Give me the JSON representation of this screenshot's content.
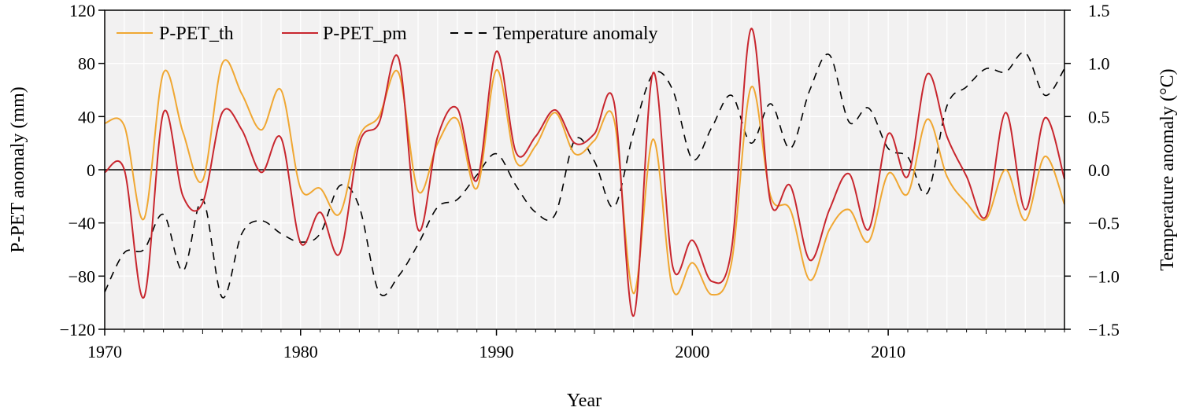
{
  "chart_data": {
    "type": "line",
    "title": "",
    "xlabel": "Year",
    "ylabel": "P-PET anomaly (mm)",
    "y2label": "Temperature anomaly (°C)",
    "xlim": [
      1970,
      2019
    ],
    "ylim": [
      -120,
      120
    ],
    "y2lim": [
      -1.5,
      1.5
    ],
    "xticks": [
      1970,
      1980,
      1990,
      2000,
      2010
    ],
    "yticks": [
      -120,
      -80,
      -40,
      0,
      40,
      80,
      120
    ],
    "y2ticks": [
      -1.5,
      -1.0,
      -0.5,
      0.0,
      0.5,
      1.0,
      1.5
    ],
    "ytick_labels": [
      "−120",
      "−80",
      "−40",
      "0",
      "40",
      "80",
      "120"
    ],
    "y2tick_labels": [
      "−1.5",
      "−1.0",
      "−0.5",
      "0.0",
      "0.5",
      "1.0",
      "1.5"
    ],
    "grid": true,
    "legend_position": "top-left",
    "series": [
      {
        "name": "P-PET_th",
        "color": "#f0a732",
        "axis": "left",
        "style": "solid",
        "x": [
          1970,
          1971,
          1972,
          1973,
          1974,
          1975,
          1976,
          1977,
          1978,
          1979,
          1980,
          1981,
          1982,
          1983,
          1984,
          1985,
          1986,
          1987,
          1988,
          1989,
          1990,
          1991,
          1992,
          1993,
          1994,
          1995,
          1996,
          1997,
          1998,
          1999,
          2000,
          2001,
          2002,
          2003,
          2004,
          2005,
          2006,
          2007,
          2008,
          2009,
          2010,
          2011,
          2012,
          2013,
          2014,
          2015,
          2016,
          2017,
          2018,
          2019
        ],
        "values": [
          35,
          33,
          -37,
          73,
          28,
          -8,
          80,
          57,
          30,
          60,
          -14,
          -14,
          -33,
          25,
          40,
          73,
          -16,
          20,
          38,
          -14,
          75,
          6,
          18,
          43,
          12,
          22,
          38,
          -93,
          23,
          -90,
          -70,
          -94,
          -70,
          62,
          -20,
          -30,
          -83,
          -45,
          -30,
          -54,
          -3,
          -18,
          38,
          -5,
          -25,
          -37,
          0,
          -38,
          10,
          -26
        ]
      },
      {
        "name": "P-PET_pm",
        "color": "#c8262e",
        "axis": "left",
        "style": "solid",
        "x": [
          1970,
          1971,
          1972,
          1973,
          1974,
          1975,
          1976,
          1977,
          1978,
          1979,
          1980,
          1981,
          1982,
          1983,
          1984,
          1985,
          1986,
          1987,
          1988,
          1989,
          1990,
          1991,
          1992,
          1993,
          1994,
          1995,
          1996,
          1997,
          1998,
          1999,
          2000,
          2001,
          2002,
          2003,
          2004,
          2005,
          2006,
          2007,
          2008,
          2009,
          2010,
          2011,
          2012,
          2013,
          2014,
          2015,
          2016,
          2017,
          2018,
          2019
        ],
        "values": [
          -2,
          0,
          -96,
          43,
          -20,
          -25,
          43,
          30,
          -2,
          24,
          -55,
          -32,
          -63,
          20,
          35,
          84,
          -45,
          25,
          46,
          -8,
          89,
          13,
          25,
          45,
          20,
          27,
          51,
          -110,
          73,
          -73,
          -53,
          -84,
          -60,
          106,
          -25,
          -12,
          -68,
          -30,
          -3,
          -45,
          27,
          -5,
          72,
          25,
          -5,
          -35,
          43,
          -30,
          39,
          -7
        ]
      },
      {
        "name": "Temperature anomaly",
        "color": "#000000",
        "axis": "right",
        "style": "dashed",
        "x": [
          1970,
          1971,
          1972,
          1973,
          1974,
          1975,
          1976,
          1977,
          1978,
          1979,
          1980,
          1981,
          1982,
          1983,
          1984,
          1985,
          1986,
          1987,
          1988,
          1989,
          1990,
          1991,
          1992,
          1993,
          1994,
          1995,
          1996,
          1997,
          1998,
          1999,
          2000,
          2001,
          2002,
          2003,
          2004,
          2005,
          2006,
          2007,
          2008,
          2009,
          2010,
          2011,
          2012,
          2013,
          2014,
          2015,
          2016,
          2017,
          2018,
          2019
        ],
        "values": [
          -1.15,
          -0.78,
          -0.75,
          -0.42,
          -0.95,
          -0.28,
          -1.2,
          -0.6,
          -0.48,
          -0.6,
          -0.68,
          -0.6,
          -0.15,
          -0.35,
          -1.15,
          -1.0,
          -0.7,
          -0.35,
          -0.28,
          -0.05,
          0.15,
          -0.15,
          -0.4,
          -0.42,
          0.28,
          0.08,
          -0.35,
          0.35,
          0.9,
          0.75,
          0.1,
          0.4,
          0.7,
          0.25,
          0.62,
          0.2,
          0.75,
          1.08,
          0.45,
          0.58,
          0.2,
          0.12,
          -0.22,
          0.6,
          0.78,
          0.95,
          0.92,
          1.1,
          0.7,
          0.95
        ]
      }
    ]
  }
}
